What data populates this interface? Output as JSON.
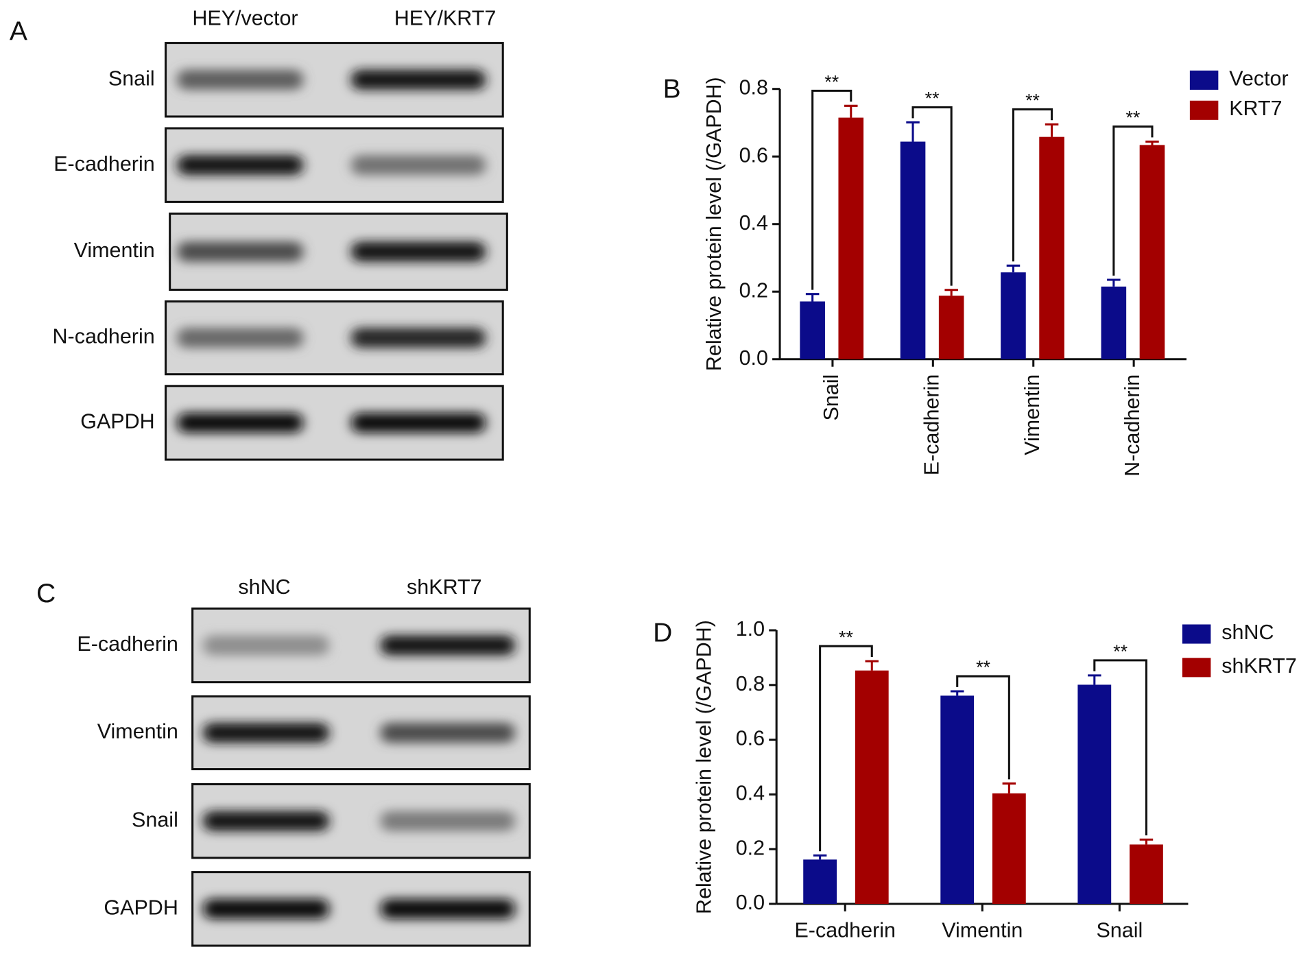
{
  "panels": {
    "a": "A",
    "b": "B",
    "c": "C",
    "d": "D"
  },
  "blots": [
    {
      "lanes": [
        "HEY/vector",
        "HEY/KRT7"
      ],
      "rows": [
        "Snail",
        "E-cadherin",
        "Vimentin",
        "N-cadherin",
        "GAPDH"
      ]
    },
    {
      "lanes": [
        "shNC",
        "shKRT7"
      ],
      "rows": [
        "E-cadherin",
        "Vimentin",
        "Snail",
        "GAPDH"
      ]
    }
  ],
  "chart_data": [
    {
      "type": "bar",
      "ylabel": "Relative protein level (/GAPDH)",
      "categories": [
        "Snail",
        "E-cadherin",
        "Vimentin",
        "N-cadherin"
      ],
      "series": [
        {
          "name": "Vector",
          "color": "#0b0b8a",
          "values": [
            0.171,
            0.644,
            0.257,
            0.215
          ],
          "errors": [
            0.022,
            0.057,
            0.02,
            0.02
          ]
        },
        {
          "name": "KRT7",
          "color": "#a30000",
          "values": [
            0.715,
            0.188,
            0.658,
            0.634
          ],
          "errors": [
            0.035,
            0.017,
            0.037,
            0.01
          ]
        }
      ],
      "ylim": [
        0,
        0.8
      ],
      "yticks": [
        {
          "value": 0,
          "label": "0.0"
        },
        0.2,
        0.4,
        0.6,
        0.8
      ],
      "significance": [
        "**",
        "**",
        "**",
        "**"
      ],
      "legend": "right",
      "xtick_rotation": 90
    },
    {
      "type": "bar",
      "ylabel": "Relative protein level (/GAPDH)",
      "categories": [
        "E-cadherin",
        "Vimentin",
        "Snail"
      ],
      "series": [
        {
          "name": "shNC",
          "color": "#0b0b8a",
          "values": [
            0.162,
            0.761,
            0.801
          ],
          "errors": [
            0.015,
            0.016,
            0.034
          ]
        },
        {
          "name": "shKRT7",
          "color": "#a30000",
          "values": [
            0.853,
            0.404,
            0.217
          ],
          "errors": [
            0.034,
            0.036,
            0.018
          ]
        }
      ],
      "ylim": [
        0,
        1
      ],
      "yticks": [
        {
          "value": 0,
          "label": "0.0"
        },
        0.2,
        0.4,
        0.6,
        0.8,
        {
          "value": 1,
          "label": "1.0"
        }
      ],
      "significance": [
        "**",
        "**",
        "**"
      ],
      "legend": "right",
      "xtick_rotation": 0
    }
  ]
}
